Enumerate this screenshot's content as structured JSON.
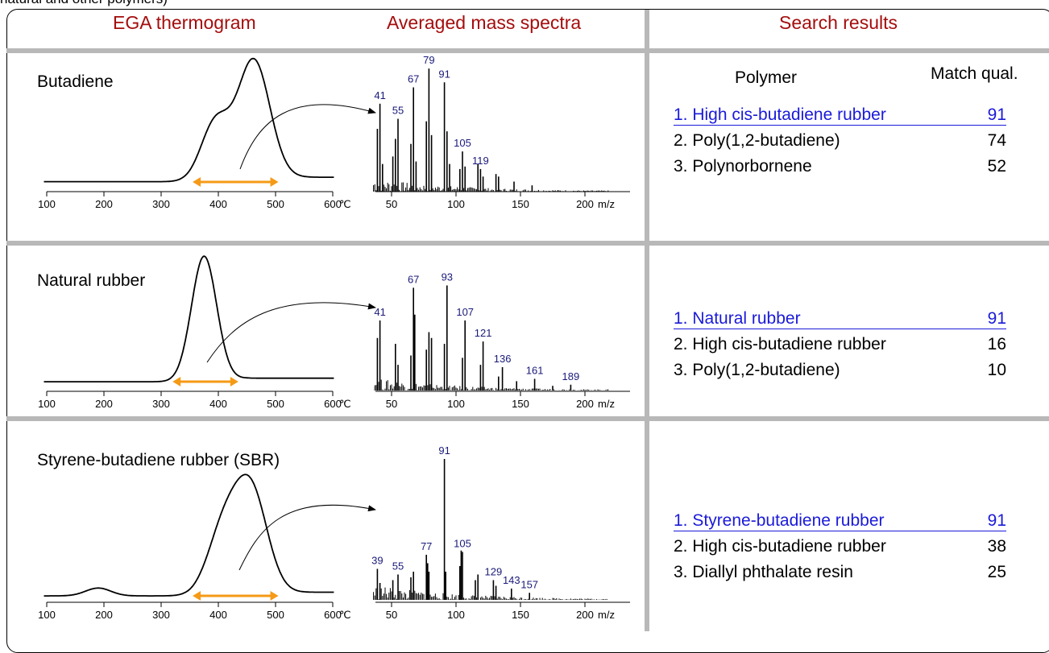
{
  "caption": "natural and other polymers)",
  "headers": {
    "ega": "EGA thermogram",
    "ms": "Averaged mass spectra",
    "search": "Search results"
  },
  "result_columns": {
    "polymer": "Polymer",
    "match": "Match qual."
  },
  "rows": [
    {
      "sample": "Butadiene",
      "results": [
        {
          "name": "1. High cis-butadiene rubber",
          "score": "91"
        },
        {
          "name": "2. Poly(1,2-butadiene)",
          "score": "74"
        },
        {
          "name": "3. Polynorbornene",
          "score": "52"
        }
      ]
    },
    {
      "sample": "Natural rubber",
      "results": [
        {
          "name": "1. Natural rubber",
          "score": "91"
        },
        {
          "name": "2. High cis-butadiene rubber",
          "score": "16"
        },
        {
          "name": "3. Poly(1,2-butadiene)",
          "score": "10"
        }
      ]
    },
    {
      "sample": "Styrene-butadiene rubber (SBR)",
      "results": [
        {
          "name": "1. Styrene-butadiene rubber",
          "score": "91"
        },
        {
          "name": "2. High cis-butadiene rubber",
          "score": "38"
        },
        {
          "name": "3. Diallyl phthalate resin",
          "score": "25"
        }
      ]
    }
  ],
  "chart_data": [
    {
      "type": "line",
      "panel": "ega",
      "row": 0,
      "x_ticks": [
        100,
        200,
        300,
        400,
        500,
        600
      ],
      "x_unit": "℃",
      "xlim": [
        100,
        600
      ],
      "baseline": 0.05,
      "peaks": [
        {
          "x": 395,
          "h": 0.45,
          "w": 25
        },
        {
          "x": 462,
          "h": 0.92,
          "w": 28
        }
      ],
      "range": [
        355,
        505
      ],
      "range_color": "#f59a16"
    },
    {
      "type": "bar",
      "panel": "ms",
      "row": 0,
      "x_ticks": [
        50,
        100,
        150,
        200
      ],
      "x_unit": "m/z",
      "xlim": [
        30,
        220
      ],
      "peaks": [
        {
          "mz": 39,
          "i": 0.5
        },
        {
          "mz": 41,
          "i": 0.7
        },
        {
          "mz": 43,
          "i": 0.22
        },
        {
          "mz": 51,
          "i": 0.28
        },
        {
          "mz": 53,
          "i": 0.42
        },
        {
          "mz": 55,
          "i": 0.58
        },
        {
          "mz": 65,
          "i": 0.38
        },
        {
          "mz": 67,
          "i": 0.83
        },
        {
          "mz": 69,
          "i": 0.24
        },
        {
          "mz": 77,
          "i": 0.56
        },
        {
          "mz": 79,
          "i": 0.98
        },
        {
          "mz": 81,
          "i": 0.45
        },
        {
          "mz": 91,
          "i": 0.87
        },
        {
          "mz": 93,
          "i": 0.48
        },
        {
          "mz": 95,
          "i": 0.22
        },
        {
          "mz": 103,
          "i": 0.18
        },
        {
          "mz": 105,
          "i": 0.32
        },
        {
          "mz": 107,
          "i": 0.2
        },
        {
          "mz": 117,
          "i": 0.22
        },
        {
          "mz": 119,
          "i": 0.18
        },
        {
          "mz": 121,
          "i": 0.12
        },
        {
          "mz": 131,
          "i": 0.14
        },
        {
          "mz": 133,
          "i": 0.12
        },
        {
          "mz": 145,
          "i": 0.08
        },
        {
          "mz": 159,
          "i": 0.05
        }
      ],
      "labels": [
        {
          "mz": 41,
          "text": "41"
        },
        {
          "mz": 55,
          "text": "55"
        },
        {
          "mz": 67,
          "text": "67"
        },
        {
          "mz": 79,
          "text": "79"
        },
        {
          "mz": 91,
          "text": "91"
        },
        {
          "mz": 105,
          "text": "105"
        },
        {
          "mz": 119,
          "text": "119"
        }
      ]
    },
    {
      "type": "line",
      "panel": "ega",
      "row": 1,
      "x_ticks": [
        100,
        200,
        300,
        400,
        500,
        600
      ],
      "x_unit": "℃",
      "xlim": [
        100,
        600
      ],
      "baseline": 0.04,
      "peaks": [
        {
          "x": 375,
          "h": 0.98,
          "w": 22
        }
      ],
      "range": [
        320,
        435
      ],
      "range_color": "#f59a16"
    },
    {
      "type": "bar",
      "panel": "ms",
      "row": 1,
      "x_ticks": [
        50,
        100,
        150,
        200
      ],
      "x_unit": "m/z",
      "xlim": [
        30,
        220
      ],
      "peaks": [
        {
          "mz": 39,
          "i": 0.45
        },
        {
          "mz": 41,
          "i": 0.6
        },
        {
          "mz": 53,
          "i": 0.4
        },
        {
          "mz": 55,
          "i": 0.22
        },
        {
          "mz": 65,
          "i": 0.3
        },
        {
          "mz": 67,
          "i": 0.88
        },
        {
          "mz": 68,
          "i": 0.65
        },
        {
          "mz": 77,
          "i": 0.35
        },
        {
          "mz": 79,
          "i": 0.5
        },
        {
          "mz": 81,
          "i": 0.45
        },
        {
          "mz": 91,
          "i": 0.4
        },
        {
          "mz": 93,
          "i": 0.9
        },
        {
          "mz": 105,
          "i": 0.28
        },
        {
          "mz": 107,
          "i": 0.6
        },
        {
          "mz": 119,
          "i": 0.22
        },
        {
          "mz": 121,
          "i": 0.42
        },
        {
          "mz": 133,
          "i": 0.12
        },
        {
          "mz": 136,
          "i": 0.2
        },
        {
          "mz": 147,
          "i": 0.08
        },
        {
          "mz": 161,
          "i": 0.1
        },
        {
          "mz": 175,
          "i": 0.04
        },
        {
          "mz": 189,
          "i": 0.05
        }
      ],
      "labels": [
        {
          "mz": 41,
          "text": "41"
        },
        {
          "mz": 67,
          "text": "67"
        },
        {
          "mz": 93,
          "text": "93"
        },
        {
          "mz": 107,
          "text": "107"
        },
        {
          "mz": 121,
          "text": "121"
        },
        {
          "mz": 136,
          "text": "136"
        },
        {
          "mz": 161,
          "text": "161"
        },
        {
          "mz": 189,
          "text": "189"
        }
      ]
    },
    {
      "type": "line",
      "panel": "ega",
      "row": 2,
      "x_ticks": [
        100,
        200,
        300,
        400,
        500,
        600
      ],
      "x_unit": "℃",
      "xlim": [
        100,
        600
      ],
      "baseline": 0.04,
      "peaks": [
        {
          "x": 190,
          "h": 0.06,
          "w": 22
        },
        {
          "x": 410,
          "h": 0.5,
          "w": 28
        },
        {
          "x": 458,
          "h": 0.75,
          "w": 28
        }
      ],
      "range": [
        355,
        505
      ],
      "range_color": "#f59a16"
    },
    {
      "type": "bar",
      "panel": "ms",
      "row": 2,
      "x_ticks": [
        50,
        100,
        150,
        200
      ],
      "x_unit": "m/z",
      "xlim": [
        30,
        220
      ],
      "peaks": [
        {
          "mz": 39,
          "i": 0.22
        },
        {
          "mz": 41,
          "i": 0.12
        },
        {
          "mz": 51,
          "i": 0.14
        },
        {
          "mz": 55,
          "i": 0.18
        },
        {
          "mz": 65,
          "i": 0.16
        },
        {
          "mz": 67,
          "i": 0.2
        },
        {
          "mz": 77,
          "i": 0.32
        },
        {
          "mz": 78,
          "i": 0.26
        },
        {
          "mz": 79,
          "i": 0.2
        },
        {
          "mz": 91,
          "i": 1.0
        },
        {
          "mz": 92,
          "i": 0.2
        },
        {
          "mz": 103,
          "i": 0.24
        },
        {
          "mz": 104,
          "i": 0.35
        },
        {
          "mz": 105,
          "i": 0.34
        },
        {
          "mz": 115,
          "i": 0.14
        },
        {
          "mz": 117,
          "i": 0.18
        },
        {
          "mz": 129,
          "i": 0.14
        },
        {
          "mz": 131,
          "i": 0.1
        },
        {
          "mz": 143,
          "i": 0.08
        },
        {
          "mz": 157,
          "i": 0.05
        }
      ],
      "labels": [
        {
          "mz": 39,
          "text": "39"
        },
        {
          "mz": 55,
          "text": "55"
        },
        {
          "mz": 77,
          "text": "77"
        },
        {
          "mz": 91,
          "text": "91"
        },
        {
          "mz": 105,
          "text": "105"
        },
        {
          "mz": 129,
          "text": "129"
        },
        {
          "mz": 143,
          "text": "143"
        },
        {
          "mz": 157,
          "text": "157"
        }
      ]
    }
  ]
}
